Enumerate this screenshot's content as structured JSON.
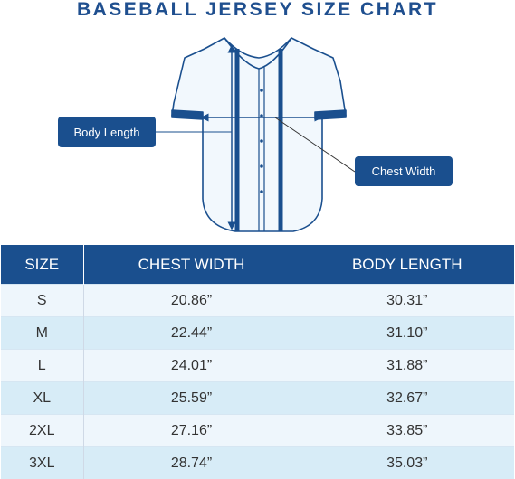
{
  "title": "BASEBALL JERSEY SIZE CHART",
  "callouts": {
    "body_length": "Body Length",
    "chest_width": "Chest Width"
  },
  "colors": {
    "primary": "#1a4f8e",
    "row_light": "#eef6fc",
    "row_dark": "#d7ecf7"
  },
  "table": {
    "headers": [
      "SIZE",
      "CHEST WIDTH",
      "BODY LENGTH"
    ],
    "rows": [
      [
        "S",
        "20.86”",
        "30.31”"
      ],
      [
        "M",
        "22.44”",
        "31.10”"
      ],
      [
        "L",
        "24.01”",
        "31.88”"
      ],
      [
        "XL",
        "25.59”",
        "32.67”"
      ],
      [
        "2XL",
        "27.16”",
        "33.85”"
      ],
      [
        "3XL",
        "28.74”",
        "35.03”"
      ]
    ]
  }
}
